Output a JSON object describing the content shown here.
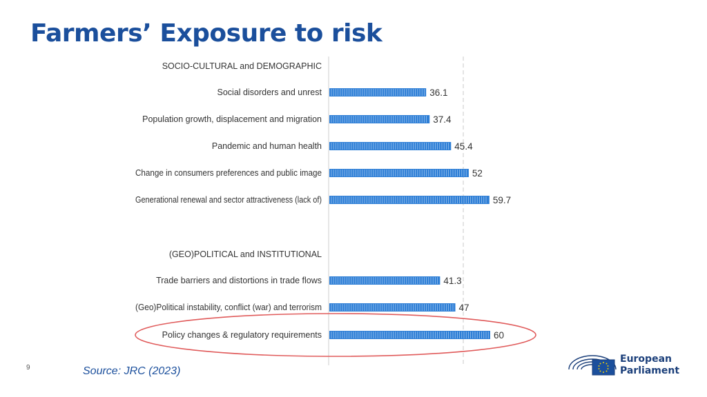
{
  "slide": {
    "title": "Farmers’ Exposure to risk",
    "page_number": "9",
    "source": "Source: JRC (2023)"
  },
  "logo": {
    "line1": "European",
    "line2": "Parliament"
  },
  "colors": {
    "title": "#1b4f9c",
    "bar": "#2f7fd6",
    "highlight": "#e05a5a"
  },
  "chart_data": {
    "type": "bar",
    "orientation": "horizontal",
    "xlim": [
      0,
      60
    ],
    "grid": false,
    "reference_line_at": 60,
    "highlighted": "Policy changes & regulatory requirements",
    "rows": [
      {
        "kind": "group",
        "label": "SOCIO-CULTURAL and DEMOGRAPHIC"
      },
      {
        "kind": "bar",
        "label": "Social disorders and unrest",
        "value": 36.1
      },
      {
        "kind": "bar",
        "label": "Population growth, displacement and migration",
        "value": 37.4
      },
      {
        "kind": "bar",
        "label": "Pandemic and human health",
        "value": 45.4
      },
      {
        "kind": "bar",
        "label": "Change in consumers preferences and public image",
        "value": 52
      },
      {
        "kind": "bar",
        "label": "Generational renewal and sector attractiveness (lack of)",
        "value": 59.7
      },
      {
        "kind": "group",
        "label": "(GEO)POLITICAL and INSTITUTIONAL"
      },
      {
        "kind": "bar",
        "label": "Trade barriers and distortions in trade flows",
        "value": 41.3
      },
      {
        "kind": "bar",
        "label": "(Geo)Political instability, conflict (war) and terrorism",
        "value": 47
      },
      {
        "kind": "bar",
        "label": "Policy changes & regulatory requirements",
        "value": 60
      }
    ]
  }
}
